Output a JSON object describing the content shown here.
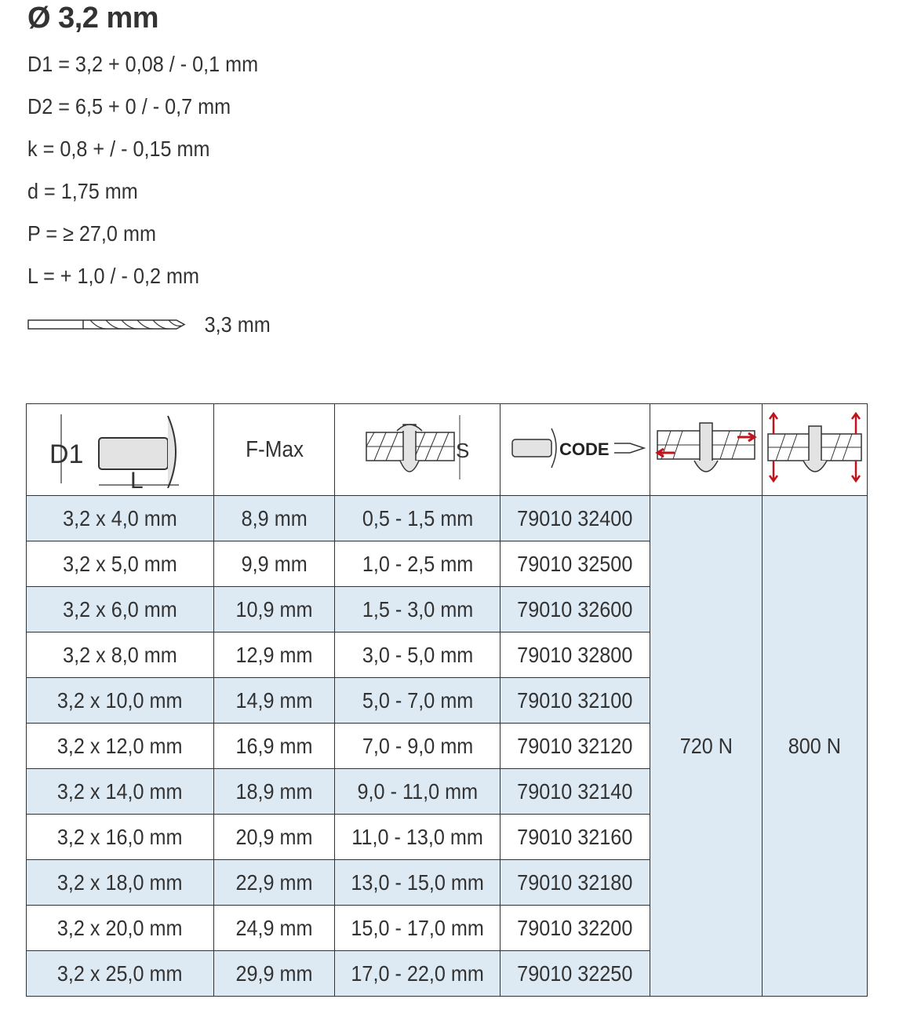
{
  "title": "Ø 3,2 mm",
  "specs": [
    "D1 = 3,2 + 0,08 / - 0,1 mm",
    "D2 = 6,5 + 0 / - 0,7 mm",
    "k = 0,8 + / - 0,15 mm",
    "d = 1,75 mm",
    "P = ≥ 27,0 mm",
    "L = + 1,0 / - 0,2 mm"
  ],
  "drill": {
    "icon": "drill-bit-icon",
    "label": "3,3 mm"
  },
  "table": {
    "headers": {
      "dimension_icon": "rivet-dimension-icon",
      "dimension_labels": [
        "D1",
        "L"
      ],
      "fmax": "F-Max",
      "grip_icon": "grip-range-icon",
      "grip_label": "S",
      "code_icon": "rivet-code-icon",
      "code_label": "CODE",
      "shear_icon": "shear-force-icon",
      "tensile_icon": "tensile-force-icon"
    },
    "accent_color": "#c0141c",
    "row_color": "#dde9f3",
    "rows": [
      [
        "3,2 x 4,0 mm",
        "8,9 mm",
        "0,5 - 1,5 mm",
        "79010 32400"
      ],
      [
        "3,2 x 5,0 mm",
        "9,9 mm",
        "1,0 - 2,5 mm",
        "79010 32500"
      ],
      [
        "3,2 x 6,0 mm",
        "10,9 mm",
        "1,5 - 3,0 mm",
        "79010 32600"
      ],
      [
        "3,2 x 8,0 mm",
        "12,9 mm",
        "3,0 - 5,0 mm",
        "79010 32800"
      ],
      [
        "3,2 x 10,0 mm",
        "14,9 mm",
        "5,0 - 7,0 mm",
        "79010 32100"
      ],
      [
        "3,2 x 12,0 mm",
        "16,9 mm",
        "7,0 - 9,0 mm",
        "79010 32120"
      ],
      [
        "3,2 x 14,0 mm",
        "18,9 mm",
        "9,0 - 11,0 mm",
        "79010 32140"
      ],
      [
        "3,2 x 16,0 mm",
        "20,9 mm",
        "11,0 - 13,0 mm",
        "79010 32160"
      ],
      [
        "3,2 x 18,0 mm",
        "22,9 mm",
        "13,0 - 15,0 mm",
        "79010 32180"
      ],
      [
        "3,2 x 20,0 mm",
        "24,9 mm",
        "15,0 - 17,0 mm",
        "79010 32200"
      ],
      [
        "3,2 x 25,0 mm",
        "29,9 mm",
        "17,0 - 22,0 mm",
        "79010 32250"
      ]
    ],
    "shear": "720 N",
    "tensile": "800 N"
  }
}
